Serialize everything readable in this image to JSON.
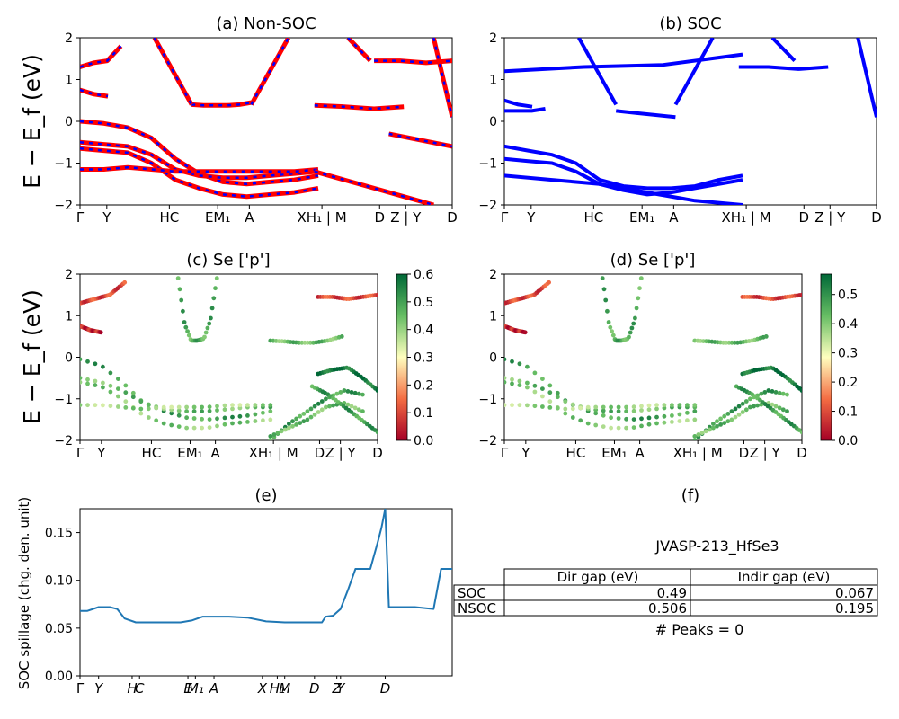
{
  "figure": {
    "ylabel_band": "E − E_f (eV)",
    "panel_a_title": "(a) Non-SOC",
    "panel_b_title": "(b) SOC",
    "panel_c_title": "(c)  Se ['p']",
    "panel_d_title": "(d) Se ['p']",
    "panel_e_title": "(e)",
    "panel_f_title": "(f)",
    "spillage_ylabel": "SOC spillage (chg. den. unit)"
  },
  "kpath": [
    "Γ",
    "Y",
    "H",
    "C",
    "E",
    "M1",
    "A",
    "X",
    "H1",
    "M",
    "D",
    "Z",
    "Y",
    "D"
  ],
  "band_ticks": [
    "Γ",
    "Y",
    "HC",
    "EM₁",
    "A",
    "XH₁ | M",
    "D",
    "Z | Y",
    "D"
  ],
  "spillage_ticks": [
    "Γ",
    "Y",
    "H",
    "C",
    "E",
    "M₁",
    "A",
    "X",
    "H₁",
    "M",
    "D",
    "Z",
    "Y",
    "D"
  ],
  "colorbar_c": {
    "ticks": [
      "0.0",
      "0.1",
      "0.2",
      "0.3",
      "0.4",
      "0.5",
      "0.6"
    ],
    "range": [
      0,
      0.6
    ]
  },
  "colorbar_d": {
    "ticks": [
      "0.0",
      "0.1",
      "0.2",
      "0.3",
      "0.4",
      "0.5"
    ],
    "range": [
      0,
      0.57
    ]
  },
  "gap_table": {
    "title": "JVASP-213_HfSe3",
    "headers": [
      "Dir gap (eV)",
      "Indir gap (eV)"
    ],
    "rows": [
      {
        "label": "SOC",
        "dir": "0.49",
        "indir": "0.067"
      },
      {
        "label": "NSOC",
        "dir": "0.506",
        "indir": "0.195"
      }
    ],
    "peaks": "# Peaks = 0"
  },
  "chart_data": [
    {
      "type": "line",
      "title": "(a) Non-SOC",
      "ylabel": "E − E_f (eV)",
      "ylim": [
        -2,
        2
      ],
      "y_ticks": [
        -2,
        -1,
        0,
        1,
        2
      ],
      "series": [
        {
          "values": [
            0.0,
            -0.05,
            -0.15,
            -0.4,
            -0.9,
            -1.25,
            -1.45,
            -1.5,
            -1.45,
            -1.4,
            -1.3
          ]
        },
        {
          "values": [
            -0.5,
            -0.55,
            -0.6,
            -0.8,
            -1.15,
            -1.3,
            -1.35,
            -1.35,
            -1.3,
            -1.25,
            -1.2
          ]
        },
        {
          "values": [
            -0.65,
            -0.7,
            -0.75,
            -1.0,
            -1.4,
            -1.6,
            -1.75,
            -1.8,
            -1.75,
            -1.7,
            -1.6
          ]
        },
        {
          "values": [
            -1.15,
            -1.15,
            -1.1,
            -1.15,
            -1.2,
            -1.2,
            -1.2,
            -1.2,
            -1.2,
            -1.2,
            -1.15
          ]
        },
        {
          "values": [
            0.75,
            0.65,
            0.6
          ]
        },
        {
          "values": [
            1.3,
            1.4,
            1.45,
            1.8
          ]
        },
        {
          "values": [
            0.4,
            0.38,
            0.38,
            0.38,
            0.4,
            0.45
          ]
        },
        {
          "values": [
            0.38,
            0.35,
            0.3,
            0.35
          ]
        },
        {
          "values": [
            1.45,
            1.45,
            1.4,
            1.45
          ]
        },
        {
          "values": [
            -0.3,
            -0.45,
            -0.6
          ]
        },
        {
          "values": [
            -1.2,
            -1.4,
            -1.6,
            -1.8,
            -2.0
          ]
        }
      ]
    },
    {
      "type": "line",
      "title": "(b) SOC",
      "ylabel": "",
      "ylim": [
        -2,
        2
      ],
      "y_ticks": [
        -2,
        -1,
        0,
        1,
        2
      ],
      "series": [
        {
          "values": [
            -0.6,
            -0.7,
            -0.8,
            -1.0,
            -1.4,
            -1.55,
            -1.6,
            -1.6,
            -1.55,
            -1.4,
            -1.3
          ]
        },
        {
          "values": [
            -0.9,
            -0.95,
            -1.0,
            -1.2,
            -1.5,
            -1.65,
            -1.75,
            -1.7,
            -1.6,
            -1.5,
            -1.4
          ]
        },
        {
          "values": [
            -1.3,
            -1.4,
            -1.5,
            -1.7,
            -1.9,
            -2.0
          ]
        },
        {
          "values": [
            1.2,
            1.3,
            1.35,
            1.6
          ]
        },
        {
          "values": [
            0.5,
            0.4,
            0.35
          ]
        },
        {
          "values": [
            0.25,
            0.25,
            0.25,
            0.3
          ]
        },
        {
          "values": [
            0.25,
            0.2,
            0.15,
            0.1
          ]
        },
        {
          "values": [
            1.3,
            1.3,
            1.25,
            1.3
          ]
        }
      ]
    },
    {
      "type": "scatter",
      "title": "(c)  Se ['p']",
      "ylabel": "E − E_f (eV)",
      "ylim": [
        -2,
        2
      ],
      "y_ticks": [
        -2,
        -1,
        0,
        1,
        2
      ],
      "colorbar": [
        0,
        0.6
      ]
    },
    {
      "type": "scatter",
      "title": "(d) Se ['p']",
      "ylabel": "",
      "ylim": [
        -2,
        2
      ],
      "y_ticks": [
        -2,
        -1,
        0,
        1,
        2
      ],
      "colorbar": [
        0,
        0.57
      ]
    },
    {
      "type": "line",
      "title": "(e)",
      "ylabel": "SOC spillage (chg. den. unit)",
      "ylim": [
        0,
        0.175
      ],
      "y_ticks": [
        0.0,
        0.05,
        0.1,
        0.15
      ],
      "x": [
        0.0,
        0.02,
        0.05,
        0.08,
        0.1,
        0.12,
        0.15,
        0.2,
        0.27,
        0.3,
        0.33,
        0.36,
        0.4,
        0.45,
        0.5,
        0.55,
        0.6,
        0.65,
        0.66,
        0.68,
        0.7,
        0.72,
        0.74,
        0.76,
        0.78,
        0.8,
        0.81,
        0.82,
        0.83,
        0.86,
        0.9,
        0.95,
        0.97,
        1.0
      ],
      "values": [
        0.068,
        0.068,
        0.072,
        0.072,
        0.07,
        0.06,
        0.056,
        0.056,
        0.056,
        0.058,
        0.062,
        0.062,
        0.062,
        0.061,
        0.057,
        0.056,
        0.056,
        0.056,
        0.062,
        0.063,
        0.07,
        0.09,
        0.112,
        0.112,
        0.112,
        0.14,
        0.155,
        0.175,
        0.072,
        0.072,
        0.072,
        0.07,
        0.112,
        0.112
      ]
    }
  ]
}
